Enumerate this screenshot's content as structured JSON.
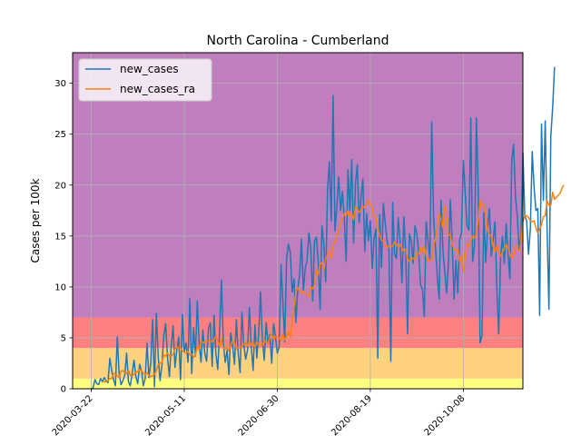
{
  "chart_data": {
    "type": "line",
    "title": "North Carolina - Cumberland",
    "xlabel": "",
    "ylabel": "Cases per 100k",
    "x_ticks": [
      "2020-03-22",
      "2020-05-11",
      "2020-06-30",
      "2020-08-19",
      "2020-10-08"
    ],
    "x_range": [
      "2020-03-12",
      "2020-11-09"
    ],
    "ylim": [
      0,
      33
    ],
    "y_ticks": [
      0,
      5,
      10,
      15,
      20,
      25,
      30
    ],
    "grid": true,
    "legend_position": "top-left",
    "bands": [
      {
        "from": 0,
        "to": 1,
        "color": "#ffff80"
      },
      {
        "from": 1,
        "to": 4,
        "color": "#ffd280"
      },
      {
        "from": 4,
        "to": 7,
        "color": "#ff8080"
      },
      {
        "from": 7,
        "to": 33,
        "color": "#bf7fbf"
      }
    ],
    "series": [
      {
        "name": "new_cases",
        "color": "#1f77b4",
        "x_start": "2020-03-22",
        "step_days": 1,
        "values": [
          0.0,
          0.1,
          0.9,
          0.5,
          0.4,
          1.0,
          0.7,
          1.1,
          0.8,
          0.6,
          3.0,
          1.8,
          0.9,
          0.3,
          5.1,
          1.5,
          0.4,
          0.8,
          1.3,
          3.5,
          0.7,
          0.3,
          1.5,
          2.8,
          1.2,
          0.5,
          2.4,
          1.8,
          0.3,
          1.0,
          4.5,
          1.1,
          2.5,
          6.8,
          0.2,
          7.4,
          3.2,
          0.8,
          2.3,
          5.2,
          6.4,
          3.1,
          1.2,
          4.2,
          6.2,
          2.1,
          3.8,
          5.1,
          0.9,
          7.3,
          3.6,
          4.5,
          2.6,
          8.9,
          1.5,
          6.0,
          3.2,
          8.6,
          4.5,
          2.6,
          5.8,
          3.5,
          2.7,
          5.9,
          6.5,
          2.2,
          7.2,
          3.4,
          1.9,
          5.8,
          10.7,
          4.5,
          2.6,
          3.8,
          1.4,
          5.5,
          4.2,
          2.4,
          6.8,
          3.5,
          1.6,
          7.5,
          4.3,
          2.9,
          3.8,
          8.0,
          4.2,
          1.8,
          6.3,
          3.0,
          5.5,
          9.5,
          4.8,
          2.8,
          6.5,
          4.5,
          5.3,
          2.5,
          6.4,
          5.2,
          3.5,
          4.1,
          12.2,
          8.5,
          4.6,
          12.8,
          14.2,
          13.4,
          9.5,
          10.8,
          6.5,
          9.8,
          11.2,
          14.7,
          9.6,
          11.8,
          12.6,
          15.3,
          13.8,
          8.6,
          14.5,
          14.9,
          12.5,
          7.8,
          16.0,
          14.2,
          10.5,
          19.5,
          22.3,
          16.5,
          28.8,
          15.5,
          17.9,
          20.8,
          17.5,
          19.4,
          16.7,
          12.5,
          21.5,
          17.5,
          22.5,
          14.3,
          20.2,
          22.0,
          16.3,
          18.8,
          20.6,
          13.5,
          17.2,
          14.5,
          16.5,
          11.8,
          14.8,
          15.7,
          3.0,
          17.1,
          11.9,
          18.2,
          16.3,
          14.5,
          13.7,
          2.7,
          18.3,
          13.2,
          12.8,
          16.8,
          14.5,
          10.4,
          16.9,
          13.5,
          5.4,
          15.2,
          14.6,
          12.3,
          16.0,
          15.2,
          13.4,
          10.2,
          9.8,
          7.1,
          16.4,
          14.6,
          12.8,
          26.2,
          16.8,
          14.0,
          11.0,
          8.8,
          18.5,
          13.7,
          11.5,
          9.4,
          12.5,
          18.6,
          14.3,
          8.8,
          12.6,
          9.4,
          14.6,
          15.3,
          22.4,
          19.2,
          16.0,
          15.6,
          26.6,
          12.5,
          14.0,
          26.6,
          19.5,
          4.5,
          5.2,
          17.3,
          12.4,
          15.8,
          17.7,
          13.0,
          14.6,
          16.4,
          9.8,
          5.4,
          12.7,
          15.0,
          12.3,
          16.2,
          13.2,
          10.8,
          22.4,
          24.0,
          18.8,
          17.0,
          13.5,
          15.1,
          23.2,
          17.0,
          16.5,
          13.2,
          15.7,
          23.3,
          19.8,
          17.5,
          17.7,
          7.2,
          26.0,
          18.5,
          26.3,
          15.7,
          7.8,
          24.8,
          27.6,
          31.6
        ]
      },
      {
        "name": "new_cases_ra",
        "color": "#ff7f0e",
        "x_start": "2020-03-28",
        "step_days": 1,
        "values": [
          0.7,
          0.7,
          0.7,
          0.8,
          1.0,
          1.0,
          1.5,
          1.4,
          1.3,
          1.1,
          1.7,
          1.8,
          1.6,
          1.5,
          1.8,
          1.3,
          1.3,
          1.4,
          1.6,
          1.7,
          1.9,
          1.8,
          1.5,
          1.4,
          1.6,
          1.3,
          1.2,
          1.3,
          1.4,
          1.8,
          2.4,
          2.5,
          2.6,
          3.3,
          3.2,
          3.5,
          3.2,
          3.2,
          3.4,
          3.9,
          4.1,
          4.0,
          4.0,
          3.7,
          3.6,
          3.5,
          3.7,
          3.3,
          3.4,
          3.1,
          3.3,
          4.2,
          3.8,
          4.7,
          4.5,
          4.6,
          4.6,
          4.7,
          4.7,
          4.6,
          4.9,
          5.1,
          4.7,
          4.2,
          4.9,
          4.0,
          3.9,
          4.0,
          3.7,
          4.3,
          4.7,
          4.5,
          3.9,
          4.1,
          4.0,
          4.2,
          4.4,
          4.5,
          4.2,
          4.7,
          4.3,
          4.5,
          4.1,
          4.6,
          4.3,
          4.3,
          4.3,
          4.7,
          4.6,
          4.4,
          5.1,
          5.3,
          4.9,
          5.1,
          5.2,
          5.0,
          4.7,
          5.4,
          4.8,
          5.1,
          5.6,
          5.0,
          6.6,
          8.0,
          9.6,
          9.9,
          9.6,
          9.4,
          9.6,
          9.3,
          9.2,
          9.0,
          10.0,
          9.8,
          10.2,
          11.7,
          11.2,
          12.2,
          12.4,
          11.6,
          12.7,
          13.2,
          13.5,
          12.8,
          14.1,
          14.4,
          15.0,
          15.5,
          16.2,
          16.7,
          17.2,
          17.0,
          17.5,
          16.9,
          17.2,
          16.6,
          17.9,
          17.6,
          17.3,
          17.6,
          17.9,
          17.8,
          18.1,
          18.5,
          18.1,
          17.8,
          16.8,
          16.7,
          15.7,
          15.1,
          14.6,
          14.5,
          13.9,
          14.0,
          13.9,
          14.0,
          14.0,
          14.4,
          14.2,
          13.9,
          14.2,
          13.8,
          13.5,
          13.7,
          12.7,
          12.5,
          12.9,
          12.8,
          12.6,
          13.3,
          13.2,
          13.9,
          13.4,
          14.0,
          13.1,
          12.5,
          12.7,
          12.6,
          14.1,
          14.7,
          16.0,
          17.2,
          16.6,
          15.8,
          18.0,
          16.9,
          15.1,
          15.1,
          14.3,
          13.6,
          13.6,
          13.7,
          12.5,
          13.0,
          11.5,
          13.0,
          14.2,
          14.0,
          14.5,
          15.0,
          14.8,
          15.2,
          16.5,
          18.5,
          18.0,
          18.1,
          17.0,
          15.5,
          15.2,
          15.0,
          14.0,
          13.4,
          14.1,
          13.4,
          13.0,
          13.4,
          13.8,
          14.2,
          13.8,
          13.3,
          12.8,
          13.1,
          14.0,
          13.7,
          13.5,
          14.4,
          16.4,
          17.0,
          17.0,
          16.8,
          16.5,
          16.4,
          16.5,
          15.8,
          15.3,
          15.7,
          16.1,
          16.9,
          17.0,
          18.5,
          18.0,
          18.0,
          19.3,
          18.6,
          18.8,
          19.0,
          19.2,
          19.7,
          20.0
        ]
      }
    ]
  }
}
